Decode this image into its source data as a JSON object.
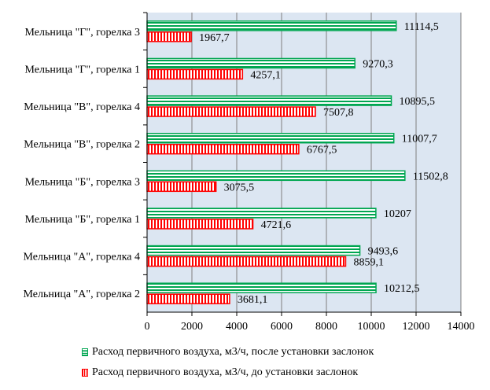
{
  "chart_data": {
    "type": "bar",
    "orientation": "horizontal",
    "categories": [
      "Мельница \"Г\", горелка 3",
      "Мельница \"Г\", горелка 1",
      "Мельница \"В\", горелка 4",
      "Мельница \"В\", горелка 2",
      "Мельница \"Б\", горелка 3",
      "Мельница \"Б\", горелка 1",
      "Мельница \"А\", горелка 4",
      "Мельница \"А\", горелка 2"
    ],
    "series": [
      {
        "name": "Расход первичного воздуха, м3/ч, после установки заслонок",
        "values": [
          11114.5,
          9270.3,
          10895.5,
          11007.7,
          11502.8,
          10207,
          9493.6,
          10212.5
        ],
        "labels": [
          "11114,5",
          "9270,3",
          "10895,5",
          "11007,7",
          "11502,8",
          "10207",
          "9493,6",
          "10212,5"
        ],
        "color": "#00a651",
        "pattern": "horizontal-stripes"
      },
      {
        "name": "Расход первичного воздуха, м3/ч, до установки заслонок",
        "values": [
          1967.7,
          4257.1,
          7507.8,
          6767.5,
          3075.5,
          4721.6,
          8859.1,
          3681.1
        ],
        "labels": [
          "1967,7",
          "4257,1",
          "7507,8",
          "6767,5",
          "3075,5",
          "4721,6",
          "8859,1",
          "3681,1"
        ],
        "color": "#ff0000",
        "pattern": "vertical-stripes"
      }
    ],
    "xlim": [
      0,
      14000
    ],
    "xticks": [
      "0",
      "2000",
      "4000",
      "6000",
      "8000",
      "10000",
      "12000",
      "14000"
    ],
    "grid": true,
    "plot_background": "#dce6f2",
    "legend_position": "bottom"
  }
}
